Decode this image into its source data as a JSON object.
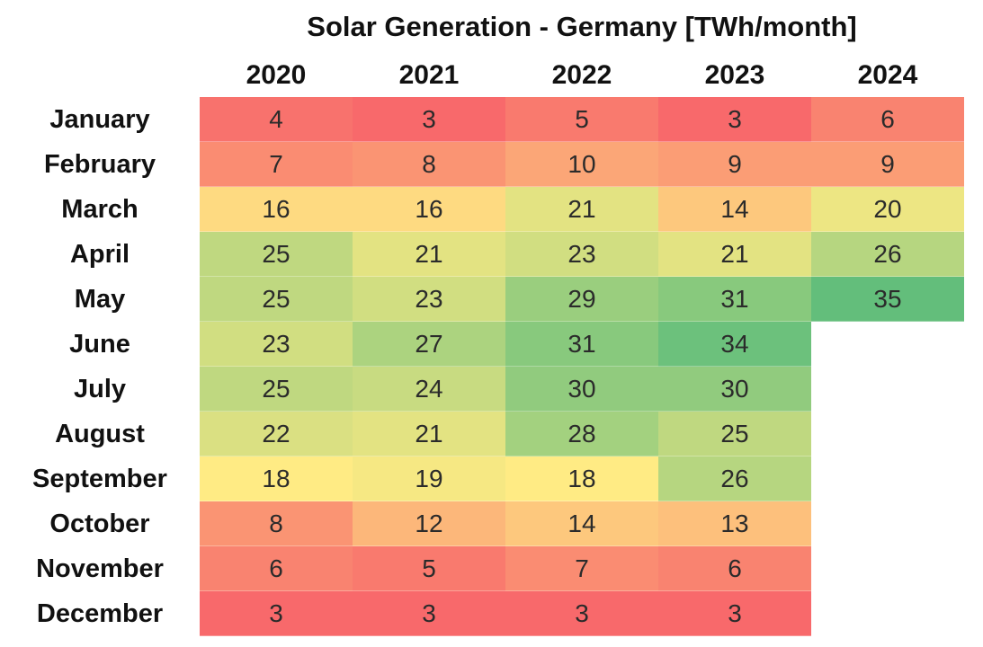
{
  "chart_data": {
    "type": "heatmap",
    "title": "Solar Generation - Germany [TWh/month]",
    "unit": "TWh/month",
    "columns": [
      "2020",
      "2021",
      "2022",
      "2023",
      "2024"
    ],
    "rows": [
      "January",
      "February",
      "March",
      "April",
      "May",
      "June",
      "July",
      "August",
      "September",
      "October",
      "November",
      "December"
    ],
    "values": [
      [
        4,
        3,
        5,
        3,
        6
      ],
      [
        7,
        8,
        10,
        9,
        9
      ],
      [
        16,
        16,
        21,
        14,
        20
      ],
      [
        25,
        21,
        23,
        21,
        26
      ],
      [
        25,
        23,
        29,
        31,
        35
      ],
      [
        23,
        27,
        31,
        34,
        null
      ],
      [
        25,
        24,
        30,
        30,
        null
      ],
      [
        22,
        21,
        28,
        25,
        null
      ],
      [
        18,
        19,
        18,
        26,
        null
      ],
      [
        8,
        12,
        14,
        13,
        null
      ],
      [
        6,
        5,
        7,
        6,
        null
      ],
      [
        3,
        3,
        3,
        3,
        null
      ]
    ],
    "color_scale": {
      "type": "3-color",
      "min_value": 3,
      "mid_value": 18,
      "max_value": 35,
      "min_color": "#F8696B",
      "mid_color": "#FFEB84",
      "max_color": "#63BE7B"
    },
    "value_text_color": "#2b2b2b",
    "label_text_color": "#111111",
    "background": "#FFFFFF",
    "legend_position": "none",
    "grid_lines": "off"
  }
}
